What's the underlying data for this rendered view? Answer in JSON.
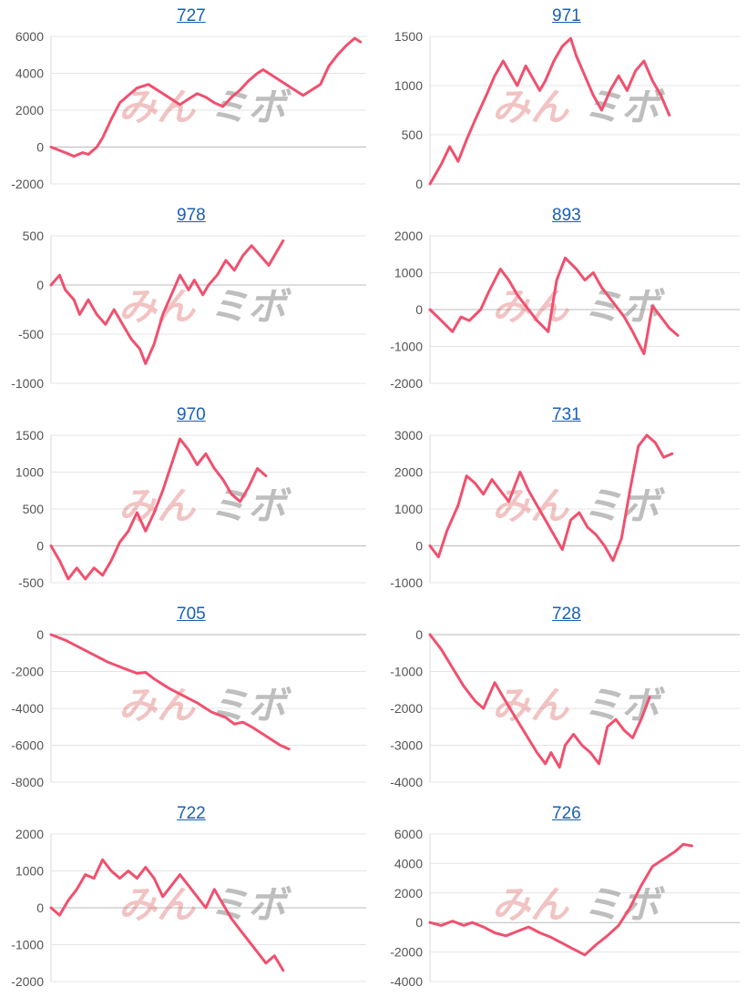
{
  "watermark": {
    "part1": "みん",
    "part2": "ミボ"
  },
  "chart_data": [
    {
      "type": "line",
      "title": "727",
      "ylim": [
        -2000,
        6000
      ],
      "yticks": [
        -2000,
        0,
        2000,
        4000,
        6000
      ],
      "color": "#f0506e",
      "points": [
        [
          0,
          0
        ],
        [
          5,
          -300
        ],
        [
          8,
          -500
        ],
        [
          11,
          -300
        ],
        [
          13,
          -400
        ],
        [
          16,
          0
        ],
        [
          18,
          500
        ],
        [
          21,
          1500
        ],
        [
          24,
          2400
        ],
        [
          27,
          2800
        ],
        [
          30,
          3200
        ],
        [
          34,
          3400
        ],
        [
          37,
          3100
        ],
        [
          40,
          2800
        ],
        [
          43,
          2500
        ],
        [
          45,
          2300
        ],
        [
          48,
          2600
        ],
        [
          51,
          2900
        ],
        [
          54,
          2700
        ],
        [
          57,
          2400
        ],
        [
          60,
          2200
        ],
        [
          63,
          2700
        ],
        [
          66,
          3100
        ],
        [
          69,
          3600
        ],
        [
          72,
          4000
        ],
        [
          74,
          4200
        ],
        [
          77,
          3900
        ],
        [
          80,
          3600
        ],
        [
          83,
          3300
        ],
        [
          86,
          3000
        ],
        [
          88,
          2800
        ],
        [
          91,
          3100
        ],
        [
          94,
          3400
        ],
        [
          97,
          4400
        ],
        [
          100,
          5000
        ],
        [
          103,
          5500
        ],
        [
          106,
          5900
        ],
        [
          108,
          5700
        ]
      ]
    },
    {
      "type": "line",
      "title": "971",
      "ylim": [
        0,
        1500
      ],
      "yticks": [
        0,
        500,
        1000,
        1500
      ],
      "color": "#f0506e",
      "points": [
        [
          0,
          0
        ],
        [
          4,
          200
        ],
        [
          7,
          380
        ],
        [
          10,
          230
        ],
        [
          13,
          450
        ],
        [
          16,
          650
        ],
        [
          20,
          900
        ],
        [
          23,
          1100
        ],
        [
          26,
          1250
        ],
        [
          29,
          1100
        ],
        [
          31,
          1000
        ],
        [
          34,
          1200
        ],
        [
          37,
          1050
        ],
        [
          39,
          950
        ],
        [
          41,
          1050
        ],
        [
          44,
          1250
        ],
        [
          47,
          1400
        ],
        [
          50,
          1480
        ],
        [
          52,
          1300
        ],
        [
          55,
          1100
        ],
        [
          58,
          900
        ],
        [
          61,
          750
        ],
        [
          64,
          950
        ],
        [
          67,
          1100
        ],
        [
          70,
          950
        ],
        [
          73,
          1150
        ],
        [
          76,
          1250
        ],
        [
          79,
          1050
        ],
        [
          82,
          900
        ],
        [
          85,
          700
        ]
      ]
    },
    {
      "type": "line",
      "title": "978",
      "ylim": [
        -1000,
        500
      ],
      "yticks": [
        -1000,
        -500,
        0,
        500
      ],
      "color": "#f0506e",
      "points": [
        [
          0,
          0
        ],
        [
          3,
          100
        ],
        [
          5,
          -50
        ],
        [
          8,
          -150
        ],
        [
          10,
          -300
        ],
        [
          13,
          -150
        ],
        [
          16,
          -300
        ],
        [
          19,
          -400
        ],
        [
          22,
          -250
        ],
        [
          25,
          -400
        ],
        [
          28,
          -550
        ],
        [
          31,
          -650
        ],
        [
          33,
          -800
        ],
        [
          36,
          -600
        ],
        [
          39,
          -300
        ],
        [
          42,
          -100
        ],
        [
          45,
          100
        ],
        [
          48,
          -50
        ],
        [
          50,
          50
        ],
        [
          53,
          -100
        ],
        [
          55,
          0
        ],
        [
          58,
          100
        ],
        [
          61,
          250
        ],
        [
          64,
          150
        ],
        [
          67,
          300
        ],
        [
          70,
          400
        ],
        [
          73,
          300
        ],
        [
          76,
          200
        ],
        [
          78,
          300
        ],
        [
          81,
          450
        ]
      ]
    },
    {
      "type": "line",
      "title": "893",
      "ylim": [
        -2000,
        2000
      ],
      "yticks": [
        -2000,
        -1000,
        0,
        1000,
        2000
      ],
      "color": "#f0506e",
      "points": [
        [
          0,
          0
        ],
        [
          4,
          -300
        ],
        [
          8,
          -600
        ],
        [
          11,
          -200
        ],
        [
          14,
          -300
        ],
        [
          18,
          0
        ],
        [
          21,
          500
        ],
        [
          25,
          1100
        ],
        [
          28,
          800
        ],
        [
          31,
          400
        ],
        [
          35,
          0
        ],
        [
          38,
          -300
        ],
        [
          42,
          -600
        ],
        [
          45,
          800
        ],
        [
          48,
          1400
        ],
        [
          52,
          1100
        ],
        [
          55,
          800
        ],
        [
          58,
          1000
        ],
        [
          61,
          600
        ],
        [
          65,
          200
        ],
        [
          69,
          -200
        ],
        [
          72,
          -600
        ],
        [
          76,
          -1200
        ],
        [
          79,
          100
        ],
        [
          82,
          -200
        ],
        [
          85,
          -500
        ],
        [
          88,
          -700
        ]
      ]
    },
    {
      "type": "line",
      "title": "970",
      "ylim": [
        -500,
        1500
      ],
      "yticks": [
        -500,
        0,
        500,
        1000,
        1500
      ],
      "color": "#f0506e",
      "points": [
        [
          0,
          0
        ],
        [
          3,
          -200
        ],
        [
          6,
          -450
        ],
        [
          9,
          -300
        ],
        [
          12,
          -450
        ],
        [
          15,
          -300
        ],
        [
          18,
          -400
        ],
        [
          21,
          -200
        ],
        [
          24,
          50
        ],
        [
          27,
          200
        ],
        [
          30,
          450
        ],
        [
          33,
          200
        ],
        [
          36,
          450
        ],
        [
          39,
          750
        ],
        [
          42,
          1100
        ],
        [
          45,
          1450
        ],
        [
          48,
          1300
        ],
        [
          51,
          1100
        ],
        [
          54,
          1250
        ],
        [
          57,
          1050
        ],
        [
          60,
          900
        ],
        [
          63,
          700
        ],
        [
          66,
          600
        ],
        [
          69,
          800
        ],
        [
          72,
          1050
        ],
        [
          75,
          950
        ]
      ]
    },
    {
      "type": "line",
      "title": "731",
      "ylim": [
        -1000,
        3000
      ],
      "yticks": [
        -1000,
        0,
        1000,
        2000,
        3000
      ],
      "color": "#f0506e",
      "points": [
        [
          0,
          0
        ],
        [
          3,
          -300
        ],
        [
          6,
          400
        ],
        [
          10,
          1100
        ],
        [
          13,
          1900
        ],
        [
          16,
          1700
        ],
        [
          19,
          1400
        ],
        [
          22,
          1800
        ],
        [
          25,
          1500
        ],
        [
          28,
          1200
        ],
        [
          32,
          2000
        ],
        [
          35,
          1500
        ],
        [
          38,
          1100
        ],
        [
          41,
          700
        ],
        [
          44,
          300
        ],
        [
          47,
          -100
        ],
        [
          50,
          700
        ],
        [
          53,
          900
        ],
        [
          56,
          500
        ],
        [
          59,
          300
        ],
        [
          62,
          0
        ],
        [
          65,
          -400
        ],
        [
          68,
          200
        ],
        [
          71,
          1500
        ],
        [
          74,
          2700
        ],
        [
          77,
          3000
        ],
        [
          80,
          2800
        ],
        [
          83,
          2400
        ],
        [
          86,
          2500
        ]
      ]
    },
    {
      "type": "line",
      "title": "705",
      "ylim": [
        -8000,
        0
      ],
      "yticks": [
        -8000,
        -6000,
        -4000,
        -2000,
        0
      ],
      "color": "#f0506e",
      "points": [
        [
          0,
          0
        ],
        [
          5,
          -300
        ],
        [
          10,
          -700
        ],
        [
          15,
          -1100
        ],
        [
          20,
          -1500
        ],
        [
          25,
          -1800
        ],
        [
          30,
          -2100
        ],
        [
          33,
          -2050
        ],
        [
          36,
          -2400
        ],
        [
          41,
          -2900
        ],
        [
          46,
          -3300
        ],
        [
          51,
          -3700
        ],
        [
          56,
          -4200
        ],
        [
          61,
          -4500
        ],
        [
          64,
          -4850
        ],
        [
          67,
          -4750
        ],
        [
          70,
          -5000
        ],
        [
          75,
          -5500
        ],
        [
          80,
          -6000
        ],
        [
          83,
          -6200
        ]
      ]
    },
    {
      "type": "line",
      "title": "728",
      "ylim": [
        -4000,
        0
      ],
      "yticks": [
        -4000,
        -3000,
        -2000,
        -1000,
        0
      ],
      "color": "#f0506e",
      "points": [
        [
          0,
          0
        ],
        [
          4,
          -400
        ],
        [
          8,
          -900
        ],
        [
          12,
          -1400
        ],
        [
          16,
          -1800
        ],
        [
          19,
          -2000
        ],
        [
          23,
          -1300
        ],
        [
          26,
          -1700
        ],
        [
          30,
          -2200
        ],
        [
          34,
          -2700
        ],
        [
          38,
          -3200
        ],
        [
          41,
          -3500
        ],
        [
          43,
          -3200
        ],
        [
          46,
          -3600
        ],
        [
          48,
          -3000
        ],
        [
          51,
          -2700
        ],
        [
          54,
          -3000
        ],
        [
          57,
          -3200
        ],
        [
          60,
          -3500
        ],
        [
          63,
          -2500
        ],
        [
          66,
          -2300
        ],
        [
          69,
          -2600
        ],
        [
          72,
          -2800
        ],
        [
          75,
          -2300
        ],
        [
          78,
          -1700
        ]
      ]
    },
    {
      "type": "line",
      "title": "722",
      "ylim": [
        -2000,
        2000
      ],
      "yticks": [
        -2000,
        -1000,
        0,
        1000,
        2000
      ],
      "color": "#f0506e",
      "points": [
        [
          0,
          0
        ],
        [
          3,
          -200
        ],
        [
          6,
          200
        ],
        [
          9,
          500
        ],
        [
          12,
          900
        ],
        [
          15,
          800
        ],
        [
          18,
          1300
        ],
        [
          21,
          1000
        ],
        [
          24,
          800
        ],
        [
          27,
          1000
        ],
        [
          30,
          800
        ],
        [
          33,
          1100
        ],
        [
          36,
          800
        ],
        [
          39,
          300
        ],
        [
          42,
          600
        ],
        [
          45,
          900
        ],
        [
          48,
          600
        ],
        [
          51,
          300
        ],
        [
          54,
          0
        ],
        [
          57,
          500
        ],
        [
          60,
          100
        ],
        [
          63,
          -300
        ],
        [
          66,
          -600
        ],
        [
          69,
          -900
        ],
        [
          72,
          -1200
        ],
        [
          75,
          -1500
        ],
        [
          78,
          -1300
        ],
        [
          81,
          -1700
        ]
      ]
    },
    {
      "type": "line",
      "title": "726",
      "ylim": [
        -4000,
        6000
      ],
      "yticks": [
        -4000,
        -2000,
        0,
        2000,
        4000,
        6000
      ],
      "color": "#f0506e",
      "points": [
        [
          0,
          0
        ],
        [
          4,
          -200
        ],
        [
          8,
          100
        ],
        [
          12,
          -200
        ],
        [
          15,
          0
        ],
        [
          19,
          -300
        ],
        [
          23,
          -700
        ],
        [
          27,
          -900
        ],
        [
          31,
          -600
        ],
        [
          35,
          -300
        ],
        [
          39,
          -700
        ],
        [
          43,
          -1000
        ],
        [
          47,
          -1400
        ],
        [
          51,
          -1800
        ],
        [
          55,
          -2200
        ],
        [
          59,
          -1500
        ],
        [
          63,
          -900
        ],
        [
          67,
          -200
        ],
        [
          71,
          1000
        ],
        [
          75,
          2500
        ],
        [
          79,
          3800
        ],
        [
          83,
          4300
        ],
        [
          87,
          4800
        ],
        [
          90,
          5300
        ],
        [
          93,
          5200
        ]
      ]
    }
  ]
}
